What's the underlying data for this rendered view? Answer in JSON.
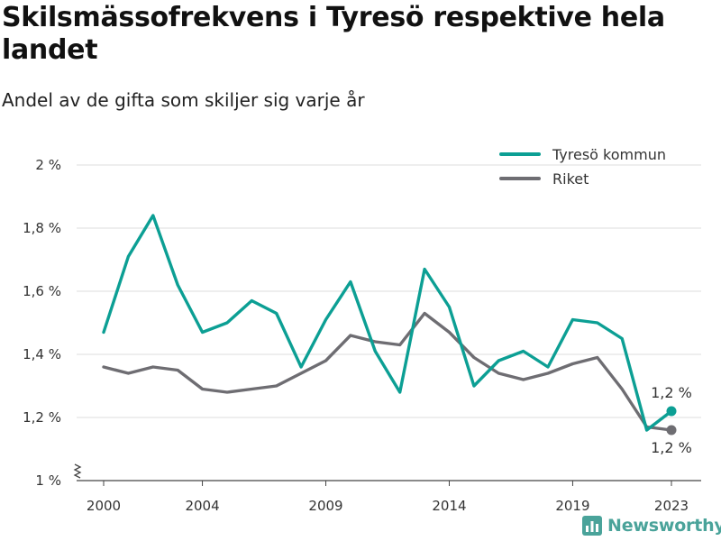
{
  "chart_data": {
    "type": "line",
    "title": "Skilsmässofrekvens i Tyresö respektive hela landet",
    "subtitle": "Andel av de gifta som skiljer sig varje år",
    "x": [
      2000,
      2001,
      2002,
      2003,
      2004,
      2005,
      2006,
      2007,
      2008,
      2009,
      2010,
      2011,
      2012,
      2013,
      2014,
      2015,
      2016,
      2017,
      2018,
      2019,
      2020,
      2021,
      2022,
      2023
    ],
    "xticks": [
      2000,
      2004,
      2009,
      2014,
      2019,
      2023
    ],
    "yticks": [
      "1 %",
      "1,2 %",
      "1,4 %",
      "1,6 %",
      "1,8 %",
      "2 %"
    ],
    "ytick_values": [
      1.0,
      1.2,
      1.4,
      1.6,
      1.8,
      2.0
    ],
    "ylim": [
      1.0,
      2.0
    ],
    "y_axis_break": true,
    "grid": "horizontal",
    "legend_position": "top-right",
    "series": [
      {
        "name": "Tyresö kommun",
        "color": "#0c9f94",
        "values": [
          1.47,
          1.71,
          1.84,
          1.62,
          1.47,
          1.5,
          1.57,
          1.53,
          1.36,
          1.51,
          1.63,
          1.41,
          1.28,
          1.67,
          1.55,
          1.3,
          1.38,
          1.41,
          1.36,
          1.51,
          1.5,
          1.45,
          1.16,
          1.22
        ],
        "end_label": "1,2 %"
      },
      {
        "name": "Riket",
        "color": "#6e6d72",
        "values": [
          1.36,
          1.34,
          1.36,
          1.35,
          1.29,
          1.28,
          1.29,
          1.3,
          1.34,
          1.38,
          1.46,
          1.44,
          1.43,
          1.53,
          1.47,
          1.39,
          1.34,
          1.32,
          1.34,
          1.37,
          1.39,
          1.29,
          1.17,
          1.16
        ],
        "end_label": "1,2 %"
      }
    ]
  },
  "brand": {
    "name": "Newsworthy",
    "icon": "bar-chart-icon",
    "color": "#4aa39a"
  }
}
